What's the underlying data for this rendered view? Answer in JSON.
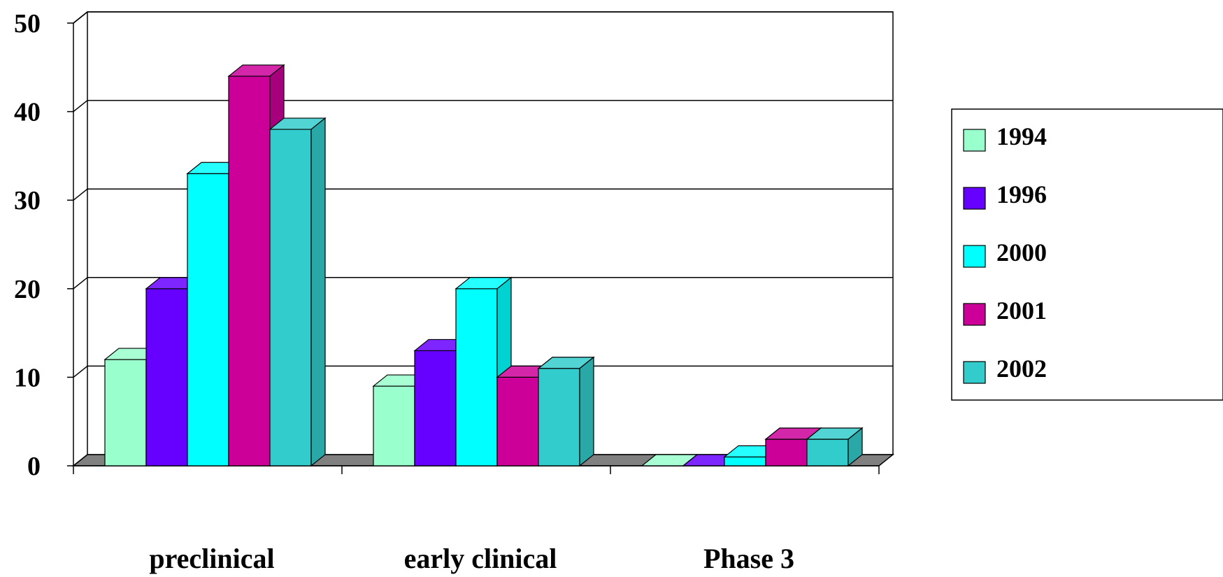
{
  "chart_data": {
    "type": "bar",
    "title": "",
    "xlabel": "",
    "ylabel": "",
    "categories": [
      "preclinical",
      "early clinical",
      "Phase 3"
    ],
    "series": [
      {
        "name": "1994",
        "values": [
          12,
          9,
          0
        ],
        "color": "#99ffcc"
      },
      {
        "name": "1996",
        "values": [
          20,
          13,
          0
        ],
        "color": "#6600ff"
      },
      {
        "name": "2000",
        "values": [
          33,
          20,
          1
        ],
        "color": "#00ffff"
      },
      {
        "name": "2001",
        "values": [
          44,
          10,
          3
        ],
        "color": "#cc0099"
      },
      {
        "name": "2002",
        "values": [
          38,
          11,
          3
        ],
        "color": "#33cccc"
      }
    ],
    "ylim": [
      0,
      50
    ],
    "yticks": [
      "0",
      "10",
      "20",
      "30",
      "40",
      "50"
    ],
    "grid": true,
    "three_d": true,
    "legend_position": "right"
  }
}
